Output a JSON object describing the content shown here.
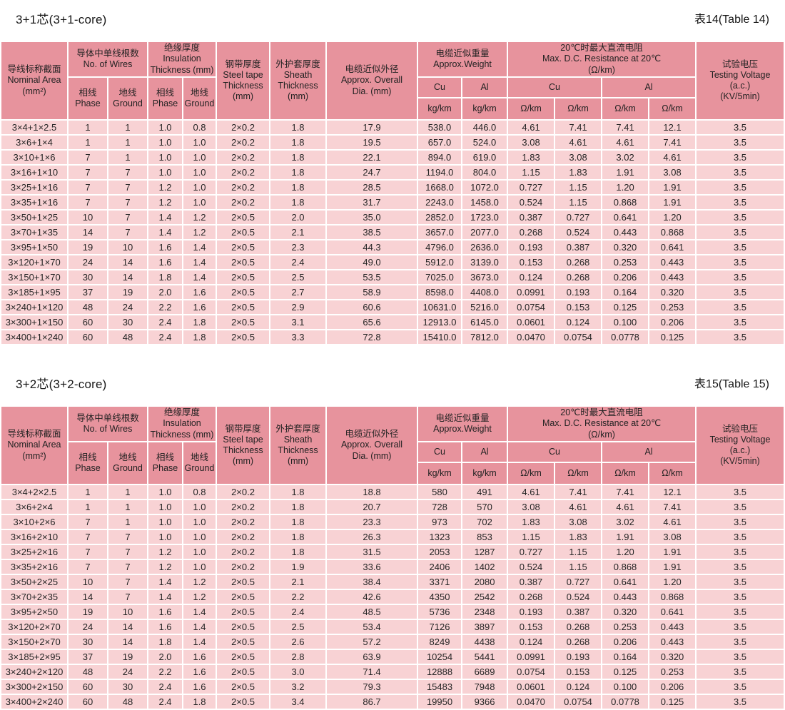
{
  "columns": {
    "nominal_area": "导线标称截面\nNominal Area\n(mm²)",
    "wires_group": "导体中单线根数\nNo. of Wires",
    "phase": "相线\nPhase",
    "ground": "地线\nGround",
    "insulation_group": "绝缘厚度\nInsulation\nThickness (mm)",
    "steel_tape": "钢带厚度\nSteel tape\nThickness\n(mm)",
    "sheath": "外护套厚度\nSheath\nThickness\n(mm)",
    "overall_dia": "电缆近似外径\nApprox. Overall\nDia. (mm)",
    "weight_group": "电缆近似重量\nApprox.Weight",
    "cu": "Cu",
    "al": "Al",
    "kg_km": "kg/km",
    "resistance_group": "20℃时最大直流电阻\nMax. D.C. Resistance at 20℃\n(Ω/km)",
    "ohm_km": "Ω/km",
    "testing_voltage": "试验电压\nTesting Voltage\n(a.c.)\n(KV/5min)"
  },
  "colors": {
    "header_pink": "#e7939d",
    "cell_pink": "#f8d2d4",
    "grid_white": "#ffffff"
  },
  "tables": [
    {
      "title": "3+1芯(3+1-core)",
      "table_label": "表14(Table 14)",
      "rows": [
        [
          "3×4+1×2.5",
          "1",
          "1",
          "1.0",
          "0.8",
          "2×0.2",
          "1.8",
          "17.9",
          "538.0",
          "446.0",
          "4.61",
          "7.41",
          "7.41",
          "12.1",
          "3.5"
        ],
        [
          "3×6+1×4",
          "1",
          "1",
          "1.0",
          "1.0",
          "2×0.2",
          "1.8",
          "19.5",
          "657.0",
          "524.0",
          "3.08",
          "4.61",
          "4.61",
          "7.41",
          "3.5"
        ],
        [
          "3×10+1×6",
          "7",
          "1",
          "1.0",
          "1.0",
          "2×0.2",
          "1.8",
          "22.1",
          "894.0",
          "619.0",
          "1.83",
          "3.08",
          "3.02",
          "4.61",
          "3.5"
        ],
        [
          "3×16+1×10",
          "7",
          "7",
          "1.0",
          "1.0",
          "2×0.2",
          "1.8",
          "24.7",
          "1194.0",
          "804.0",
          "1.15",
          "1.83",
          "1.91",
          "3.08",
          "3.5"
        ],
        [
          "3×25+1×16",
          "7",
          "7",
          "1.2",
          "1.0",
          "2×0.2",
          "1.8",
          "28.5",
          "1668.0",
          "1072.0",
          "0.727",
          "1.15",
          "1.20",
          "1.91",
          "3.5"
        ],
        [
          "3×35+1×16",
          "7",
          "7",
          "1.2",
          "1.0",
          "2×0.2",
          "1.8",
          "31.7",
          "2243.0",
          "1458.0",
          "0.524",
          "1.15",
          "0.868",
          "1.91",
          "3.5"
        ],
        [
          "3×50+1×25",
          "10",
          "7",
          "1.4",
          "1.2",
          "2×0.5",
          "2.0",
          "35.0",
          "2852.0",
          "1723.0",
          "0.387",
          "0.727",
          "0.641",
          "1.20",
          "3.5"
        ],
        [
          "3×70+1×35",
          "14",
          "7",
          "1.4",
          "1.2",
          "2×0.5",
          "2.1",
          "38.5",
          "3657.0",
          "2077.0",
          "0.268",
          "0.524",
          "0.443",
          "0.868",
          "3.5"
        ],
        [
          "3×95+1×50",
          "19",
          "10",
          "1.6",
          "1.4",
          "2×0.5",
          "2.3",
          "44.3",
          "4796.0",
          "2636.0",
          "0.193",
          "0.387",
          "0.320",
          "0.641",
          "3.5"
        ],
        [
          "3×120+1×70",
          "24",
          "14",
          "1.6",
          "1.4",
          "2×0.5",
          "2.4",
          "49.0",
          "5912.0",
          "3139.0",
          "0.153",
          "0.268",
          "0.253",
          "0.443",
          "3.5"
        ],
        [
          "3×150+1×70",
          "30",
          "14",
          "1.8",
          "1.4",
          "2×0.5",
          "2.5",
          "53.5",
          "7025.0",
          "3673.0",
          "0.124",
          "0.268",
          "0.206",
          "0.443",
          "3.5"
        ],
        [
          "3×185+1×95",
          "37",
          "19",
          "2.0",
          "1.6",
          "2×0.5",
          "2.7",
          "58.9",
          "8598.0",
          "4408.0",
          "0.0991",
          "0.193",
          "0.164",
          "0.320",
          "3.5"
        ],
        [
          "3×240+1×120",
          "48",
          "24",
          "2.2",
          "1.6",
          "2×0.5",
          "2.9",
          "60.6",
          "10631.0",
          "5216.0",
          "0.0754",
          "0.153",
          "0.125",
          "0.253",
          "3.5"
        ],
        [
          "3×300+1×150",
          "60",
          "30",
          "2.4",
          "1.8",
          "2×0.5",
          "3.1",
          "65.6",
          "12913.0",
          "6145.0",
          "0.0601",
          "0.124",
          "0.100",
          "0.206",
          "3.5"
        ],
        [
          "3×400+1×240",
          "60",
          "48",
          "2.4",
          "1.8",
          "2×0.5",
          "3.3",
          "72.8",
          "15410.0",
          "7812.0",
          "0.0470",
          "0.0754",
          "0.0778",
          "0.125",
          "3.5"
        ]
      ]
    },
    {
      "title": "3+2芯(3+2-core)",
      "table_label": "表15(Table 15)",
      "rows": [
        [
          "3×4+2×2.5",
          "1",
          "1",
          "1.0",
          "0.8",
          "2×0.2",
          "1.8",
          "18.8",
          "580",
          "491",
          "4.61",
          "7.41",
          "7.41",
          "12.1",
          "3.5"
        ],
        [
          "3×6+2×4",
          "1",
          "1",
          "1.0",
          "1.0",
          "2×0.2",
          "1.8",
          "20.7",
          "728",
          "570",
          "3.08",
          "4.61",
          "4.61",
          "7.41",
          "3.5"
        ],
        [
          "3×10+2×6",
          "7",
          "1",
          "1.0",
          "1.0",
          "2×0.2",
          "1.8",
          "23.3",
          "973",
          "702",
          "1.83",
          "3.08",
          "3.02",
          "4.61",
          "3.5"
        ],
        [
          "3×16+2×10",
          "7",
          "7",
          "1.0",
          "1.0",
          "2×0.2",
          "1.8",
          "26.3",
          "1323",
          "853",
          "1.15",
          "1.83",
          "1.91",
          "3.08",
          "3.5"
        ],
        [
          "3×25+2×16",
          "7",
          "7",
          "1.2",
          "1.0",
          "2×0.2",
          "1.8",
          "31.5",
          "2053",
          "1287",
          "0.727",
          "1.15",
          "1.20",
          "1.91",
          "3.5"
        ],
        [
          "3×35+2×16",
          "7",
          "7",
          "1.2",
          "1.0",
          "2×0.2",
          "1.9",
          "33.6",
          "2406",
          "1402",
          "0.524",
          "1.15",
          "0.868",
          "1.91",
          "3.5"
        ],
        [
          "3×50+2×25",
          "10",
          "7",
          "1.4",
          "1.2",
          "2×0.5",
          "2.1",
          "38.4",
          "3371",
          "2080",
          "0.387",
          "0.727",
          "0.641",
          "1.20",
          "3.5"
        ],
        [
          "3×70+2×35",
          "14",
          "7",
          "1.4",
          "1.2",
          "2×0.5",
          "2.2",
          "42.6",
          "4350",
          "2542",
          "0.268",
          "0.524",
          "0.443",
          "0.868",
          "3.5"
        ],
        [
          "3×95+2×50",
          "19",
          "10",
          "1.6",
          "1.4",
          "2×0.5",
          "2.4",
          "48.5",
          "5736",
          "2348",
          "0.193",
          "0.387",
          "0.320",
          "0.641",
          "3.5"
        ],
        [
          "3×120+2×70",
          "24",
          "14",
          "1.6",
          "1.4",
          "2×0.5",
          "2.5",
          "53.4",
          "7126",
          "3897",
          "0.153",
          "0.268",
          "0.253",
          "0.443",
          "3.5"
        ],
        [
          "3×150+2×70",
          "30",
          "14",
          "1.8",
          "1.4",
          "2×0.5",
          "2.6",
          "57.2",
          "8249",
          "4438",
          "0.124",
          "0.268",
          "0.206",
          "0.443",
          "3.5"
        ],
        [
          "3×185+2×95",
          "37",
          "19",
          "2.0",
          "1.6",
          "2×0.5",
          "2.8",
          "63.9",
          "10254",
          "5441",
          "0.0991",
          "0.193",
          "0.164",
          "0.320",
          "3.5"
        ],
        [
          "3×240+2×120",
          "48",
          "24",
          "2.2",
          "1.6",
          "2×0.5",
          "3.0",
          "71.4",
          "12888",
          "6689",
          "0.0754",
          "0.153",
          "0.125",
          "0.253",
          "3.5"
        ],
        [
          "3×300+2×150",
          "60",
          "30",
          "2.4",
          "1.6",
          "2×0.5",
          "3.2",
          "79.3",
          "15483",
          "7948",
          "0.0601",
          "0.124",
          "0.100",
          "0.206",
          "3.5"
        ],
        [
          "3×400+2×240",
          "60",
          "48",
          "2.4",
          "1.8",
          "2×0.5",
          "3.4",
          "86.7",
          "19950",
          "9366",
          "0.0470",
          "0.0754",
          "0.0778",
          "0.125",
          "3.5"
        ]
      ]
    }
  ]
}
